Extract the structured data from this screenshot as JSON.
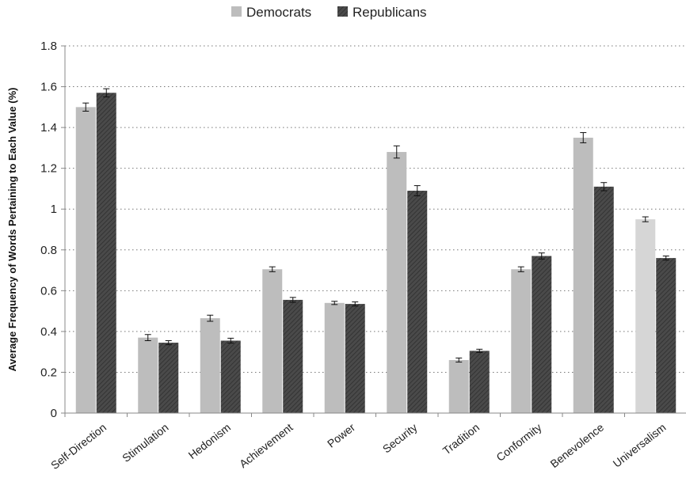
{
  "chart_data": {
    "type": "bar",
    "categories": [
      "Self-Direction",
      "Stimulation",
      "Hedonism",
      "Achievement",
      "Power",
      "Security",
      "Tradition",
      "Conformity",
      "Benevolence",
      "Universalism"
    ],
    "series": [
      {
        "name": "Democrats",
        "color": "#bdbdbd",
        "values": [
          1.5,
          0.37,
          0.465,
          0.705,
          0.54,
          1.28,
          0.26,
          0.705,
          1.35,
          0.95
        ],
        "errors": [
          0.02,
          0.015,
          0.015,
          0.012,
          0.008,
          0.03,
          0.01,
          0.012,
          0.025,
          0.012
        ]
      },
      {
        "name": "Republicans",
        "color": "#454545",
        "values": [
          1.57,
          0.345,
          0.355,
          0.555,
          0.535,
          1.09,
          0.305,
          0.77,
          1.11,
          0.76
        ],
        "errors": [
          0.02,
          0.01,
          0.012,
          0.012,
          0.01,
          0.025,
          0.008,
          0.015,
          0.02,
          0.01
        ]
      }
    ],
    "ylabel": "Average Frequency of Words  Pertaining to Each Value (%)",
    "xlabel": "",
    "ylim": [
      0,
      1.8
    ],
    "yticks": [
      0,
      0.2,
      0.4,
      0.6,
      0.8,
      1,
      1.2,
      1.4,
      1.6,
      1.8
    ],
    "ytick_labels": [
      "0",
      "0.2",
      "0.4",
      "0.6",
      "0.8",
      "1",
      "1.2",
      "1.4",
      "1.6",
      "1.8"
    ],
    "grid": "horizontal-dotted",
    "legend": {
      "placement": "top-center",
      "entries": [
        "Democrats",
        "Republicans"
      ]
    },
    "error_bars": true
  }
}
